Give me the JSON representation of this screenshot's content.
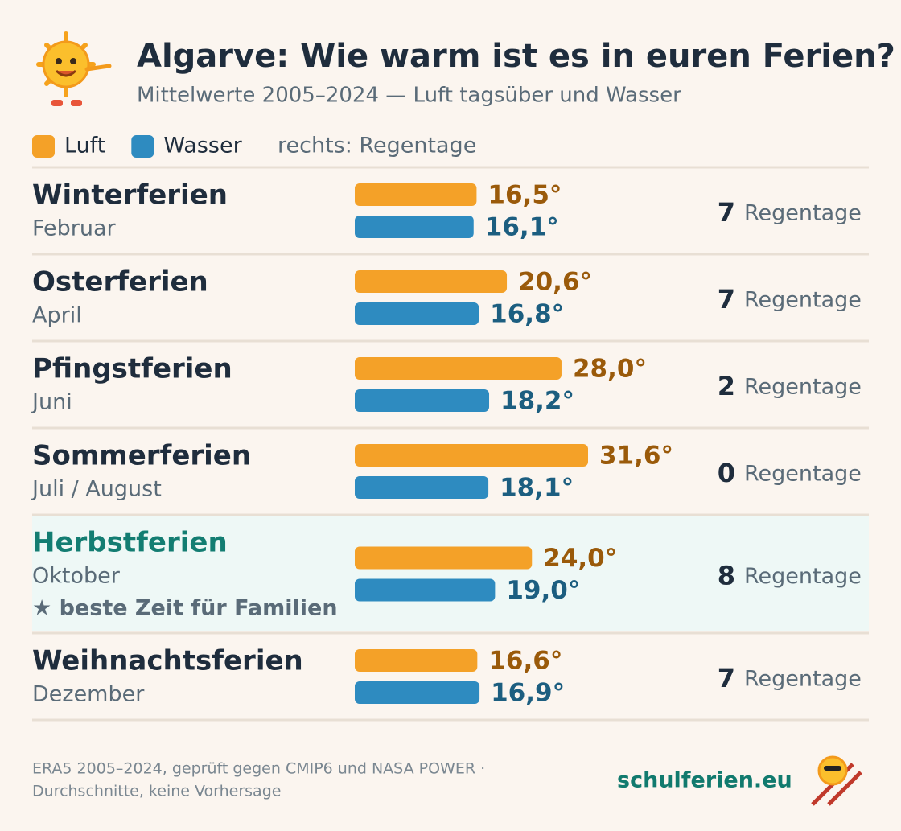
{
  "chart_data": {
    "type": "bar",
    "orientation": "horizontal",
    "title": "Algarve: Wie warm ist es in euren Ferien?",
    "subtitle": "Mittelwerte 2005–2024 — Luft tagsüber und Wasser",
    "legend_note": "rechts: Regentage",
    "categories": [
      "Winterferien",
      "Osterferien",
      "Pfingstferien",
      "Sommerferien",
      "Herbstferien",
      "Weihnachtsferien"
    ],
    "subtitles": [
      "Februar",
      "April",
      "Juni",
      "Juli / August",
      "Oktober",
      "Dezember"
    ],
    "notes": [
      null,
      null,
      null,
      null,
      "★ beste Zeit für Familien",
      null
    ],
    "series": [
      {
        "name": "Luft",
        "color": "#f4a128",
        "label_color": "#9a5a0a",
        "values": [
          16.5,
          20.6,
          28.0,
          31.6,
          24.0,
          16.6
        ],
        "value_labels": [
          "16,5°",
          "20,6°",
          "28,0°",
          "31,6°",
          "24,0°",
          "16,6°"
        ]
      },
      {
        "name": "Wasser",
        "color": "#2e8bc0",
        "label_color": "#1c5e80",
        "values": [
          16.1,
          16.8,
          18.2,
          18.1,
          19.0,
          16.9
        ],
        "value_labels": [
          "16,1°",
          "16,8°",
          "18,2°",
          "18,1°",
          "19,0°",
          "16,9°"
        ]
      }
    ],
    "rain_days": {
      "label": "Regentage",
      "values": [
        7,
        7,
        2,
        0,
        8,
        7
      ]
    },
    "footer": {
      "source": [
        "ERA5 2005–2024, geprüft gegen CMIP6 und NASA POWER ·",
        "Durchschnitte, keine Vorhersage"
      ],
      "brand": "schulferien.eu"
    }
  }
}
